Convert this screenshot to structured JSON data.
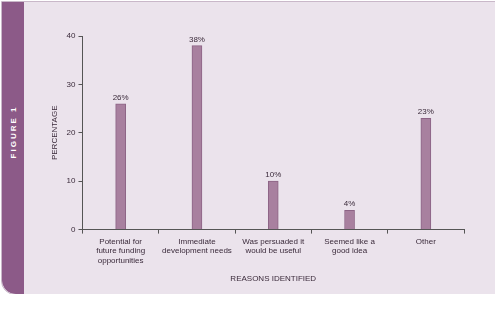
{
  "chart_data": {
    "type": "bar",
    "title": "FIGURE 1",
    "categories": [
      "Potential for future funding opportunities",
      "Immediate development needs",
      "Was persuaded it would be useful",
      "Seemed like a good idea",
      "Other"
    ],
    "values": [
      26,
      38,
      10,
      4,
      23
    ],
    "value_labels": [
      "26%",
      "38%",
      "10%",
      "4%",
      "23%"
    ],
    "data_labels": true,
    "color": "#a8809f",
    "x_label": "REASONS IDENTIFIED",
    "y_label": "PERCENTAGE",
    "ylim": [
      0,
      40
    ],
    "yticks": [
      0,
      10,
      20,
      30,
      40
    ],
    "grid": false
  }
}
